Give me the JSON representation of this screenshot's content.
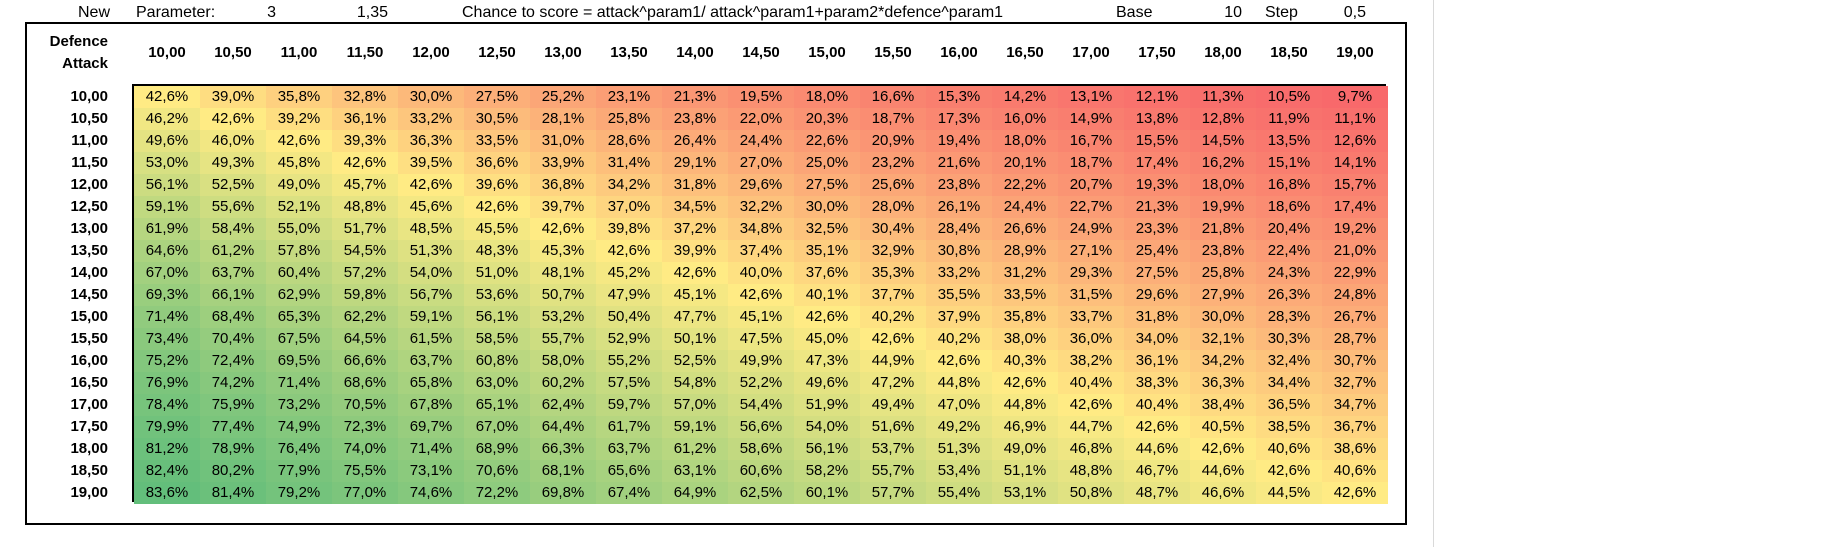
{
  "params": {
    "new_label": "New",
    "parameter_label": "Parameter:",
    "param1": "3",
    "param2": "1,35",
    "formula": "Chance to score = attack^param1/ attack^param1+param2*defence^param1",
    "base_label": "Base",
    "base_value": "10",
    "step_label": "Step",
    "step_value": "0,5"
  },
  "table": {
    "corner_top": "Defence",
    "corner_bottom": "Attack",
    "columns": [
      "10,00",
      "10,50",
      "11,00",
      "11,50",
      "12,00",
      "12,50",
      "13,00",
      "13,50",
      "14,00",
      "14,50",
      "15,00",
      "15,50",
      "16,00",
      "16,50",
      "17,00",
      "17,50",
      "18,00",
      "18,50",
      "19,00"
    ],
    "rows": [
      {
        "label": "10,00",
        "values": [
          "42,6%",
          "39,0%",
          "35,8%",
          "32,8%",
          "30,0%",
          "27,5%",
          "25,2%",
          "23,1%",
          "21,3%",
          "19,5%",
          "18,0%",
          "16,6%",
          "15,3%",
          "14,2%",
          "13,1%",
          "12,1%",
          "11,3%",
          "10,5%",
          "9,7%"
        ]
      },
      {
        "label": "10,50",
        "values": [
          "46,2%",
          "42,6%",
          "39,2%",
          "36,1%",
          "33,2%",
          "30,5%",
          "28,1%",
          "25,8%",
          "23,8%",
          "22,0%",
          "20,3%",
          "18,7%",
          "17,3%",
          "16,0%",
          "14,9%",
          "13,8%",
          "12,8%",
          "11,9%",
          "11,1%"
        ]
      },
      {
        "label": "11,00",
        "values": [
          "49,6%",
          "46,0%",
          "42,6%",
          "39,3%",
          "36,3%",
          "33,5%",
          "31,0%",
          "28,6%",
          "26,4%",
          "24,4%",
          "22,6%",
          "20,9%",
          "19,4%",
          "18,0%",
          "16,7%",
          "15,5%",
          "14,5%",
          "13,5%",
          "12,6%"
        ]
      },
      {
        "label": "11,50",
        "values": [
          "53,0%",
          "49,3%",
          "45,8%",
          "42,6%",
          "39,5%",
          "36,6%",
          "33,9%",
          "31,4%",
          "29,1%",
          "27,0%",
          "25,0%",
          "23,2%",
          "21,6%",
          "20,1%",
          "18,7%",
          "17,4%",
          "16,2%",
          "15,1%",
          "14,1%"
        ]
      },
      {
        "label": "12,00",
        "values": [
          "56,1%",
          "52,5%",
          "49,0%",
          "45,7%",
          "42,6%",
          "39,6%",
          "36,8%",
          "34,2%",
          "31,8%",
          "29,6%",
          "27,5%",
          "25,6%",
          "23,8%",
          "22,2%",
          "20,7%",
          "19,3%",
          "18,0%",
          "16,8%",
          "15,7%"
        ]
      },
      {
        "label": "12,50",
        "values": [
          "59,1%",
          "55,6%",
          "52,1%",
          "48,8%",
          "45,6%",
          "42,6%",
          "39,7%",
          "37,0%",
          "34,5%",
          "32,2%",
          "30,0%",
          "28,0%",
          "26,1%",
          "24,4%",
          "22,7%",
          "21,3%",
          "19,9%",
          "18,6%",
          "17,4%"
        ]
      },
      {
        "label": "13,00",
        "values": [
          "61,9%",
          "58,4%",
          "55,0%",
          "51,7%",
          "48,5%",
          "45,5%",
          "42,6%",
          "39,8%",
          "37,2%",
          "34,8%",
          "32,5%",
          "30,4%",
          "28,4%",
          "26,6%",
          "24,9%",
          "23,3%",
          "21,8%",
          "20,4%",
          "19,2%"
        ]
      },
      {
        "label": "13,50",
        "values": [
          "64,6%",
          "61,2%",
          "57,8%",
          "54,5%",
          "51,3%",
          "48,3%",
          "45,3%",
          "42,6%",
          "39,9%",
          "37,4%",
          "35,1%",
          "32,9%",
          "30,8%",
          "28,9%",
          "27,1%",
          "25,4%",
          "23,8%",
          "22,4%",
          "21,0%"
        ]
      },
      {
        "label": "14,00",
        "values": [
          "67,0%",
          "63,7%",
          "60,4%",
          "57,2%",
          "54,0%",
          "51,0%",
          "48,1%",
          "45,2%",
          "42,6%",
          "40,0%",
          "37,6%",
          "35,3%",
          "33,2%",
          "31,2%",
          "29,3%",
          "27,5%",
          "25,8%",
          "24,3%",
          "22,9%"
        ]
      },
      {
        "label": "14,50",
        "values": [
          "69,3%",
          "66,1%",
          "62,9%",
          "59,8%",
          "56,7%",
          "53,6%",
          "50,7%",
          "47,9%",
          "45,1%",
          "42,6%",
          "40,1%",
          "37,7%",
          "35,5%",
          "33,5%",
          "31,5%",
          "29,6%",
          "27,9%",
          "26,3%",
          "24,8%"
        ]
      },
      {
        "label": "15,00",
        "values": [
          "71,4%",
          "68,4%",
          "65,3%",
          "62,2%",
          "59,1%",
          "56,1%",
          "53,2%",
          "50,4%",
          "47,7%",
          "45,1%",
          "42,6%",
          "40,2%",
          "37,9%",
          "35,8%",
          "33,7%",
          "31,8%",
          "30,0%",
          "28,3%",
          "26,7%"
        ]
      },
      {
        "label": "15,50",
        "values": [
          "73,4%",
          "70,4%",
          "67,5%",
          "64,5%",
          "61,5%",
          "58,5%",
          "55,7%",
          "52,9%",
          "50,1%",
          "47,5%",
          "45,0%",
          "42,6%",
          "40,2%",
          "38,0%",
          "36,0%",
          "34,0%",
          "32,1%",
          "30,3%",
          "28,7%"
        ]
      },
      {
        "label": "16,00",
        "values": [
          "75,2%",
          "72,4%",
          "69,5%",
          "66,6%",
          "63,7%",
          "60,8%",
          "58,0%",
          "55,2%",
          "52,5%",
          "49,9%",
          "47,3%",
          "44,9%",
          "42,6%",
          "40,3%",
          "38,2%",
          "36,1%",
          "34,2%",
          "32,4%",
          "30,7%"
        ]
      },
      {
        "label": "16,50",
        "values": [
          "76,9%",
          "74,2%",
          "71,4%",
          "68,6%",
          "65,8%",
          "63,0%",
          "60,2%",
          "57,5%",
          "54,8%",
          "52,2%",
          "49,6%",
          "47,2%",
          "44,8%",
          "42,6%",
          "40,4%",
          "38,3%",
          "36,3%",
          "34,4%",
          "32,7%"
        ]
      },
      {
        "label": "17,00",
        "values": [
          "78,4%",
          "75,9%",
          "73,2%",
          "70,5%",
          "67,8%",
          "65,1%",
          "62,4%",
          "59,7%",
          "57,0%",
          "54,4%",
          "51,9%",
          "49,4%",
          "47,0%",
          "44,8%",
          "42,6%",
          "40,4%",
          "38,4%",
          "36,5%",
          "34,7%"
        ]
      },
      {
        "label": "17,50",
        "values": [
          "79,9%",
          "77,4%",
          "74,9%",
          "72,3%",
          "69,7%",
          "67,0%",
          "64,4%",
          "61,7%",
          "59,1%",
          "56,6%",
          "54,0%",
          "51,6%",
          "49,2%",
          "46,9%",
          "44,7%",
          "42,6%",
          "40,5%",
          "38,5%",
          "36,7%"
        ]
      },
      {
        "label": "18,00",
        "values": [
          "81,2%",
          "78,9%",
          "76,4%",
          "74,0%",
          "71,4%",
          "68,9%",
          "66,3%",
          "63,7%",
          "61,2%",
          "58,6%",
          "56,1%",
          "53,7%",
          "51,3%",
          "49,0%",
          "46,8%",
          "44,6%",
          "42,6%",
          "40,6%",
          "38,6%"
        ]
      },
      {
        "label": "18,50",
        "values": [
          "82,4%",
          "80,2%",
          "77,9%",
          "75,5%",
          "73,1%",
          "70,6%",
          "68,1%",
          "65,6%",
          "63,1%",
          "60,6%",
          "58,2%",
          "55,7%",
          "53,4%",
          "51,1%",
          "48,8%",
          "46,7%",
          "44,6%",
          "42,6%",
          "40,6%"
        ]
      },
      {
        "label": "19,00",
        "values": [
          "83,6%",
          "81,4%",
          "79,2%",
          "77,0%",
          "74,6%",
          "72,2%",
          "69,8%",
          "67,4%",
          "64,9%",
          "62,5%",
          "60,1%",
          "57,7%",
          "55,4%",
          "53,1%",
          "50,8%",
          "48,7%",
          "46,6%",
          "44,5%",
          "42,6%"
        ]
      }
    ]
  },
  "colors": {
    "low": "#f8696b",
    "mid": "#ffeb84",
    "high": "#63be7b"
  }
}
